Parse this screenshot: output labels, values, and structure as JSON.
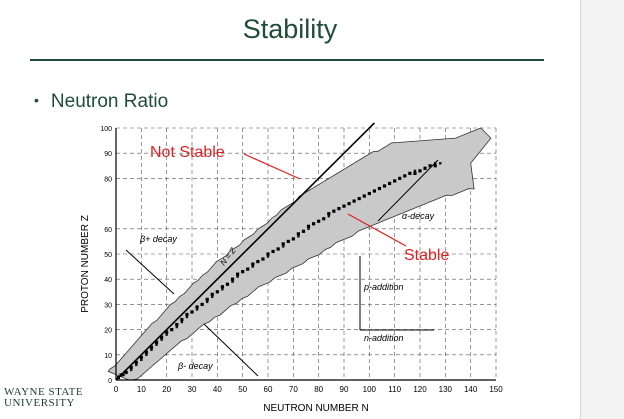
{
  "slide": {
    "title": "Stability",
    "bullet": "Neutron Ratio",
    "logo_line1": "WAYNE STATE",
    "logo_line2": "UNIVERSITY",
    "accent_color": "#1f4d35"
  },
  "chart_data": {
    "type": "scatter",
    "xlabel": "NEUTRON NUMBER N",
    "ylabel": "PROTON NUMBER Z",
    "xlim": [
      0,
      150
    ],
    "ylim": [
      0,
      100
    ],
    "xticks": [
      0,
      10,
      20,
      30,
      40,
      50,
      60,
      70,
      80,
      90,
      100,
      110,
      120,
      130,
      140,
      150
    ],
    "yticks": [
      0,
      10,
      20,
      30,
      40,
      50,
      60,
      80,
      90,
      100
    ],
    "grid": true,
    "series": [
      {
        "name": "Stable",
        "points": [
          [
            1,
            1
          ],
          [
            2,
            2
          ],
          [
            4,
            3
          ],
          [
            6,
            5
          ],
          [
            8,
            7
          ],
          [
            10,
            9
          ],
          [
            12,
            11
          ],
          [
            14,
            13
          ],
          [
            16,
            15
          ],
          [
            18,
            17
          ],
          [
            20,
            19
          ],
          [
            22,
            20
          ],
          [
            24,
            22
          ],
          [
            26,
            24
          ],
          [
            28,
            26
          ],
          [
            30,
            27
          ],
          [
            32,
            29
          ],
          [
            34,
            30
          ],
          [
            36,
            32
          ],
          [
            38,
            34
          ],
          [
            40,
            35
          ],
          [
            42,
            37
          ],
          [
            44,
            38
          ],
          [
            46,
            40
          ],
          [
            48,
            42
          ],
          [
            50,
            43
          ],
          [
            52,
            44
          ],
          [
            54,
            46
          ],
          [
            56,
            47
          ],
          [
            58,
            48
          ],
          [
            60,
            50
          ],
          [
            62,
            51
          ],
          [
            64,
            52
          ],
          [
            66,
            54
          ],
          [
            68,
            55
          ],
          [
            70,
            56
          ],
          [
            72,
            58
          ],
          [
            74,
            59
          ],
          [
            76,
            61
          ],
          [
            78,
            62
          ],
          [
            80,
            63
          ],
          [
            82,
            64
          ],
          [
            84,
            66
          ],
          [
            86,
            67
          ],
          [
            88,
            68
          ],
          [
            90,
            69
          ],
          [
            92,
            70
          ],
          [
            94,
            71
          ],
          [
            96,
            72
          ],
          [
            98,
            73
          ],
          [
            100,
            74
          ],
          [
            102,
            75
          ],
          [
            104,
            76
          ],
          [
            106,
            77
          ],
          [
            108,
            78
          ],
          [
            110,
            79
          ],
          [
            112,
            80
          ],
          [
            114,
            81
          ],
          [
            116,
            82
          ],
          [
            118,
            82
          ],
          [
            120,
            83
          ],
          [
            122,
            84
          ],
          [
            124,
            85
          ],
          [
            126,
            85
          ]
        ]
      }
    ],
    "region_color": "#c9c9c9",
    "annotations": [
      {
        "text": "Not Stable",
        "color": "#e02020"
      },
      {
        "text": "Stable",
        "color": "#e02020"
      },
      {
        "text": "N = Z"
      },
      {
        "text": "α-decay"
      },
      {
        "text": "β+ decay"
      },
      {
        "text": "β- decay"
      },
      {
        "text": "p-addition"
      },
      {
        "text": "n-addition"
      }
    ]
  }
}
